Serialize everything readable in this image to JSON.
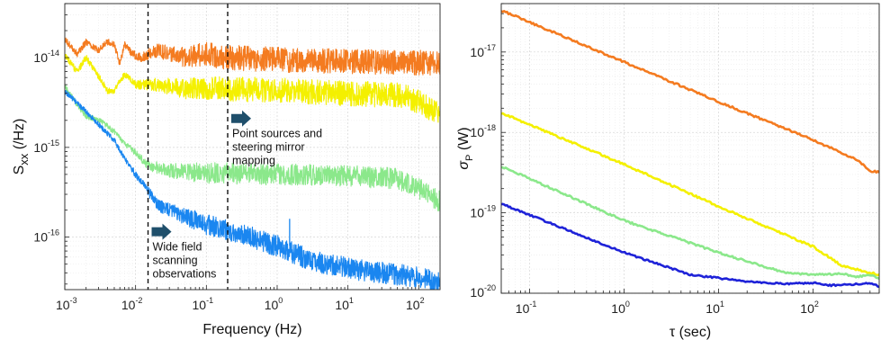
{
  "chart_data": [
    {
      "type": "line",
      "xscale": "log",
      "yscale": "log",
      "xlim": [
        0.001,
        200
      ],
      "ylim": [
        2.6e-17,
        4e-14
      ],
      "xlabel": "Frequency (Hz)",
      "ylabel_main": "S",
      "ylabel_sub": "xx",
      "ylabel_tail": " (/Hz)",
      "grid": true,
      "x_ticks": [
        {
          "base": "10",
          "exp": "-3"
        },
        {
          "base": "10",
          "exp": "-2"
        },
        {
          "base": "10",
          "exp": "-1"
        },
        {
          "base": "10",
          "exp": "0"
        },
        {
          "base": "10",
          "exp": "1"
        },
        {
          "base": "10",
          "exp": "2"
        }
      ],
      "y_ticks": [
        {
          "base": "10",
          "exp": "-16"
        },
        {
          "base": "10",
          "exp": "-15"
        },
        {
          "base": "10",
          "exp": "-14"
        }
      ],
      "vlines": [
        0.015,
        0.2
      ],
      "annotations": [
        {
          "lines": [
            "Point sources and",
            "steering mirror",
            "mapping"
          ],
          "arrow_x": 0.2,
          "arrow_y": 2.1e-15
        },
        {
          "lines": [
            "Wide field",
            "scanning",
            "observations"
          ],
          "arrow_x": 0.015,
          "arrow_y": 1.15e-16
        }
      ],
      "series": [
        {
          "color": "#F47B20",
          "noise": 0.14,
          "pts": [
            [
              0.001,
              1.6e-14
            ],
            [
              0.0015,
              1.1e-14
            ],
            [
              0.002,
              1.5e-14
            ],
            [
              0.003,
              1.2e-14
            ],
            [
              0.004,
              1.5e-14
            ],
            [
              0.005,
              1.4e-14
            ],
            [
              0.006,
              8.5e-15
            ],
            [
              0.007,
              1.4e-14
            ],
            [
              0.009,
              1.1e-14
            ],
            [
              0.012,
              1e-14
            ],
            [
              0.02,
              1.2e-14
            ],
            [
              0.05,
              1e-14
            ],
            [
              0.1,
              1.1e-14
            ],
            [
              0.2,
              1e-14
            ],
            [
              1,
              9.5e-15
            ],
            [
              10,
              9e-15
            ],
            [
              100,
              8.8e-15
            ],
            [
              200,
              8.8e-15
            ]
          ]
        },
        {
          "color": "#F4F000",
          "noise": 0.14,
          "pts": [
            [
              0.001,
              1.05e-14
            ],
            [
              0.0015,
              7e-15
            ],
            [
              0.002,
              1e-14
            ],
            [
              0.003,
              6.2e-15
            ],
            [
              0.004,
              4.3e-15
            ],
            [
              0.005,
              4.3e-15
            ],
            [
              0.007,
              6.5e-15
            ],
            [
              0.01,
              5e-15
            ],
            [
              0.02,
              5e-15
            ],
            [
              0.05,
              4.5e-15
            ],
            [
              0.1,
              4.5e-15
            ],
            [
              0.2,
              4.5e-15
            ],
            [
              1,
              4.3e-15
            ],
            [
              10,
              4e-15
            ],
            [
              50,
              3.8e-15
            ],
            [
              100,
              3.3e-15
            ],
            [
              150,
              2.7e-15
            ],
            [
              200,
              2.3e-15
            ]
          ]
        },
        {
          "color": "#8BE88B",
          "noise": 0.12,
          "pts": [
            [
              0.001,
              4.8e-15
            ],
            [
              0.0015,
              3e-15
            ],
            [
              0.002,
              2.2e-15
            ],
            [
              0.003,
              2.05e-15
            ],
            [
              0.005,
              1.5e-15
            ],
            [
              0.007,
              1.1e-15
            ],
            [
              0.01,
              8.8e-16
            ],
            [
              0.015,
              6.3e-16
            ],
            [
              0.03,
              5.5e-16
            ],
            [
              0.1,
              5.2e-16
            ],
            [
              1,
              5e-16
            ],
            [
              10,
              4.8e-16
            ],
            [
              50,
              4.5e-16
            ],
            [
              100,
              3.5e-16
            ],
            [
              150,
              2.8e-16
            ],
            [
              200,
              2.5e-16
            ]
          ]
        },
        {
          "color": "#1A86F0",
          "noise": 0.12,
          "pts": [
            [
              0.001,
              4.2e-15
            ],
            [
              0.002,
              2.5e-15
            ],
            [
              0.003,
              1.8e-15
            ],
            [
              0.005,
              1.2e-15
            ],
            [
              0.007,
              7.5e-16
            ],
            [
              0.01,
              5e-16
            ],
            [
              0.015,
              3.3e-16
            ],
            [
              0.02,
              2.3e-16
            ],
            [
              0.05,
              1.7e-16
            ],
            [
              0.1,
              1.4e-16
            ],
            [
              0.3,
              1.1e-16
            ],
            [
              1,
              8e-17
            ],
            [
              3,
              5.5e-17
            ],
            [
              10,
              4.5e-17
            ],
            [
              30,
              4e-17
            ],
            [
              100,
              3.6e-17
            ],
            [
              200,
              3.1e-17
            ]
          ]
        }
      ]
    },
    {
      "type": "line",
      "xscale": "log",
      "yscale": "log",
      "xlim": [
        0.05,
        500
      ],
      "ylim": [
        1e-20,
        4e-17
      ],
      "xlabel": "τ (sec)",
      "ylabel_main": "σ",
      "ylabel_sub": "P",
      "ylabel_tail": " (W)",
      "grid": true,
      "x_ticks": [
        {
          "base": "10",
          "exp": "-1"
        },
        {
          "base": "10",
          "exp": "0"
        },
        {
          "base": "10",
          "exp": "1"
        },
        {
          "base": "10",
          "exp": "2"
        }
      ],
      "y_ticks": [
        {
          "base": "10",
          "exp": "-20"
        },
        {
          "base": "10",
          "exp": "-19"
        },
        {
          "base": "10",
          "exp": "-18"
        },
        {
          "base": "10",
          "exp": "-17"
        }
      ],
      "series": [
        {
          "color": "#F47B20",
          "noise": 0.012,
          "pts": [
            [
              0.05,
              3.3e-17
            ],
            [
              1,
              7.5e-18
            ],
            [
              10,
              2.4e-18
            ],
            [
              80,
              9e-19
            ],
            [
              150,
              6.5e-19
            ],
            [
              300,
              4.5e-19
            ],
            [
              400,
              3.3e-19
            ],
            [
              500,
              3.2e-19
            ]
          ]
        },
        {
          "color": "#F4F000",
          "noise": 0.012,
          "pts": [
            [
              0.05,
              1.75e-18
            ],
            [
              1,
              4e-19
            ],
            [
              10,
              1.2e-19
            ],
            [
              100,
              3.8e-20
            ],
            [
              200,
              2.2e-20
            ],
            [
              400,
              1.8e-20
            ],
            [
              500,
              1.7e-20
            ]
          ]
        },
        {
          "color": "#8BE88B",
          "noise": 0.012,
          "pts": [
            [
              0.05,
              3.8e-19
            ],
            [
              1,
              8e-20
            ],
            [
              10,
              3.2e-20
            ],
            [
              50,
              1.8e-20
            ],
            [
              100,
              1.7e-20
            ],
            [
              200,
              1.75e-20
            ],
            [
              300,
              1.6e-20
            ],
            [
              400,
              1.7e-20
            ],
            [
              500,
              1.55e-20
            ]
          ]
        },
        {
          "color": "#1E22D8",
          "noise": 0.01,
          "pts": [
            [
              0.05,
              1.3e-19
            ],
            [
              1,
              3.2e-20
            ],
            [
              5,
              1.7e-20
            ],
            [
              20,
              1.4e-20
            ],
            [
              50,
              1.3e-20
            ],
            [
              100,
              1.35e-20
            ],
            [
              150,
              1.25e-20
            ],
            [
              300,
              1.3e-20
            ],
            [
              400,
              1.35e-20
            ],
            [
              500,
              1.2e-20
            ]
          ]
        }
      ]
    }
  ]
}
